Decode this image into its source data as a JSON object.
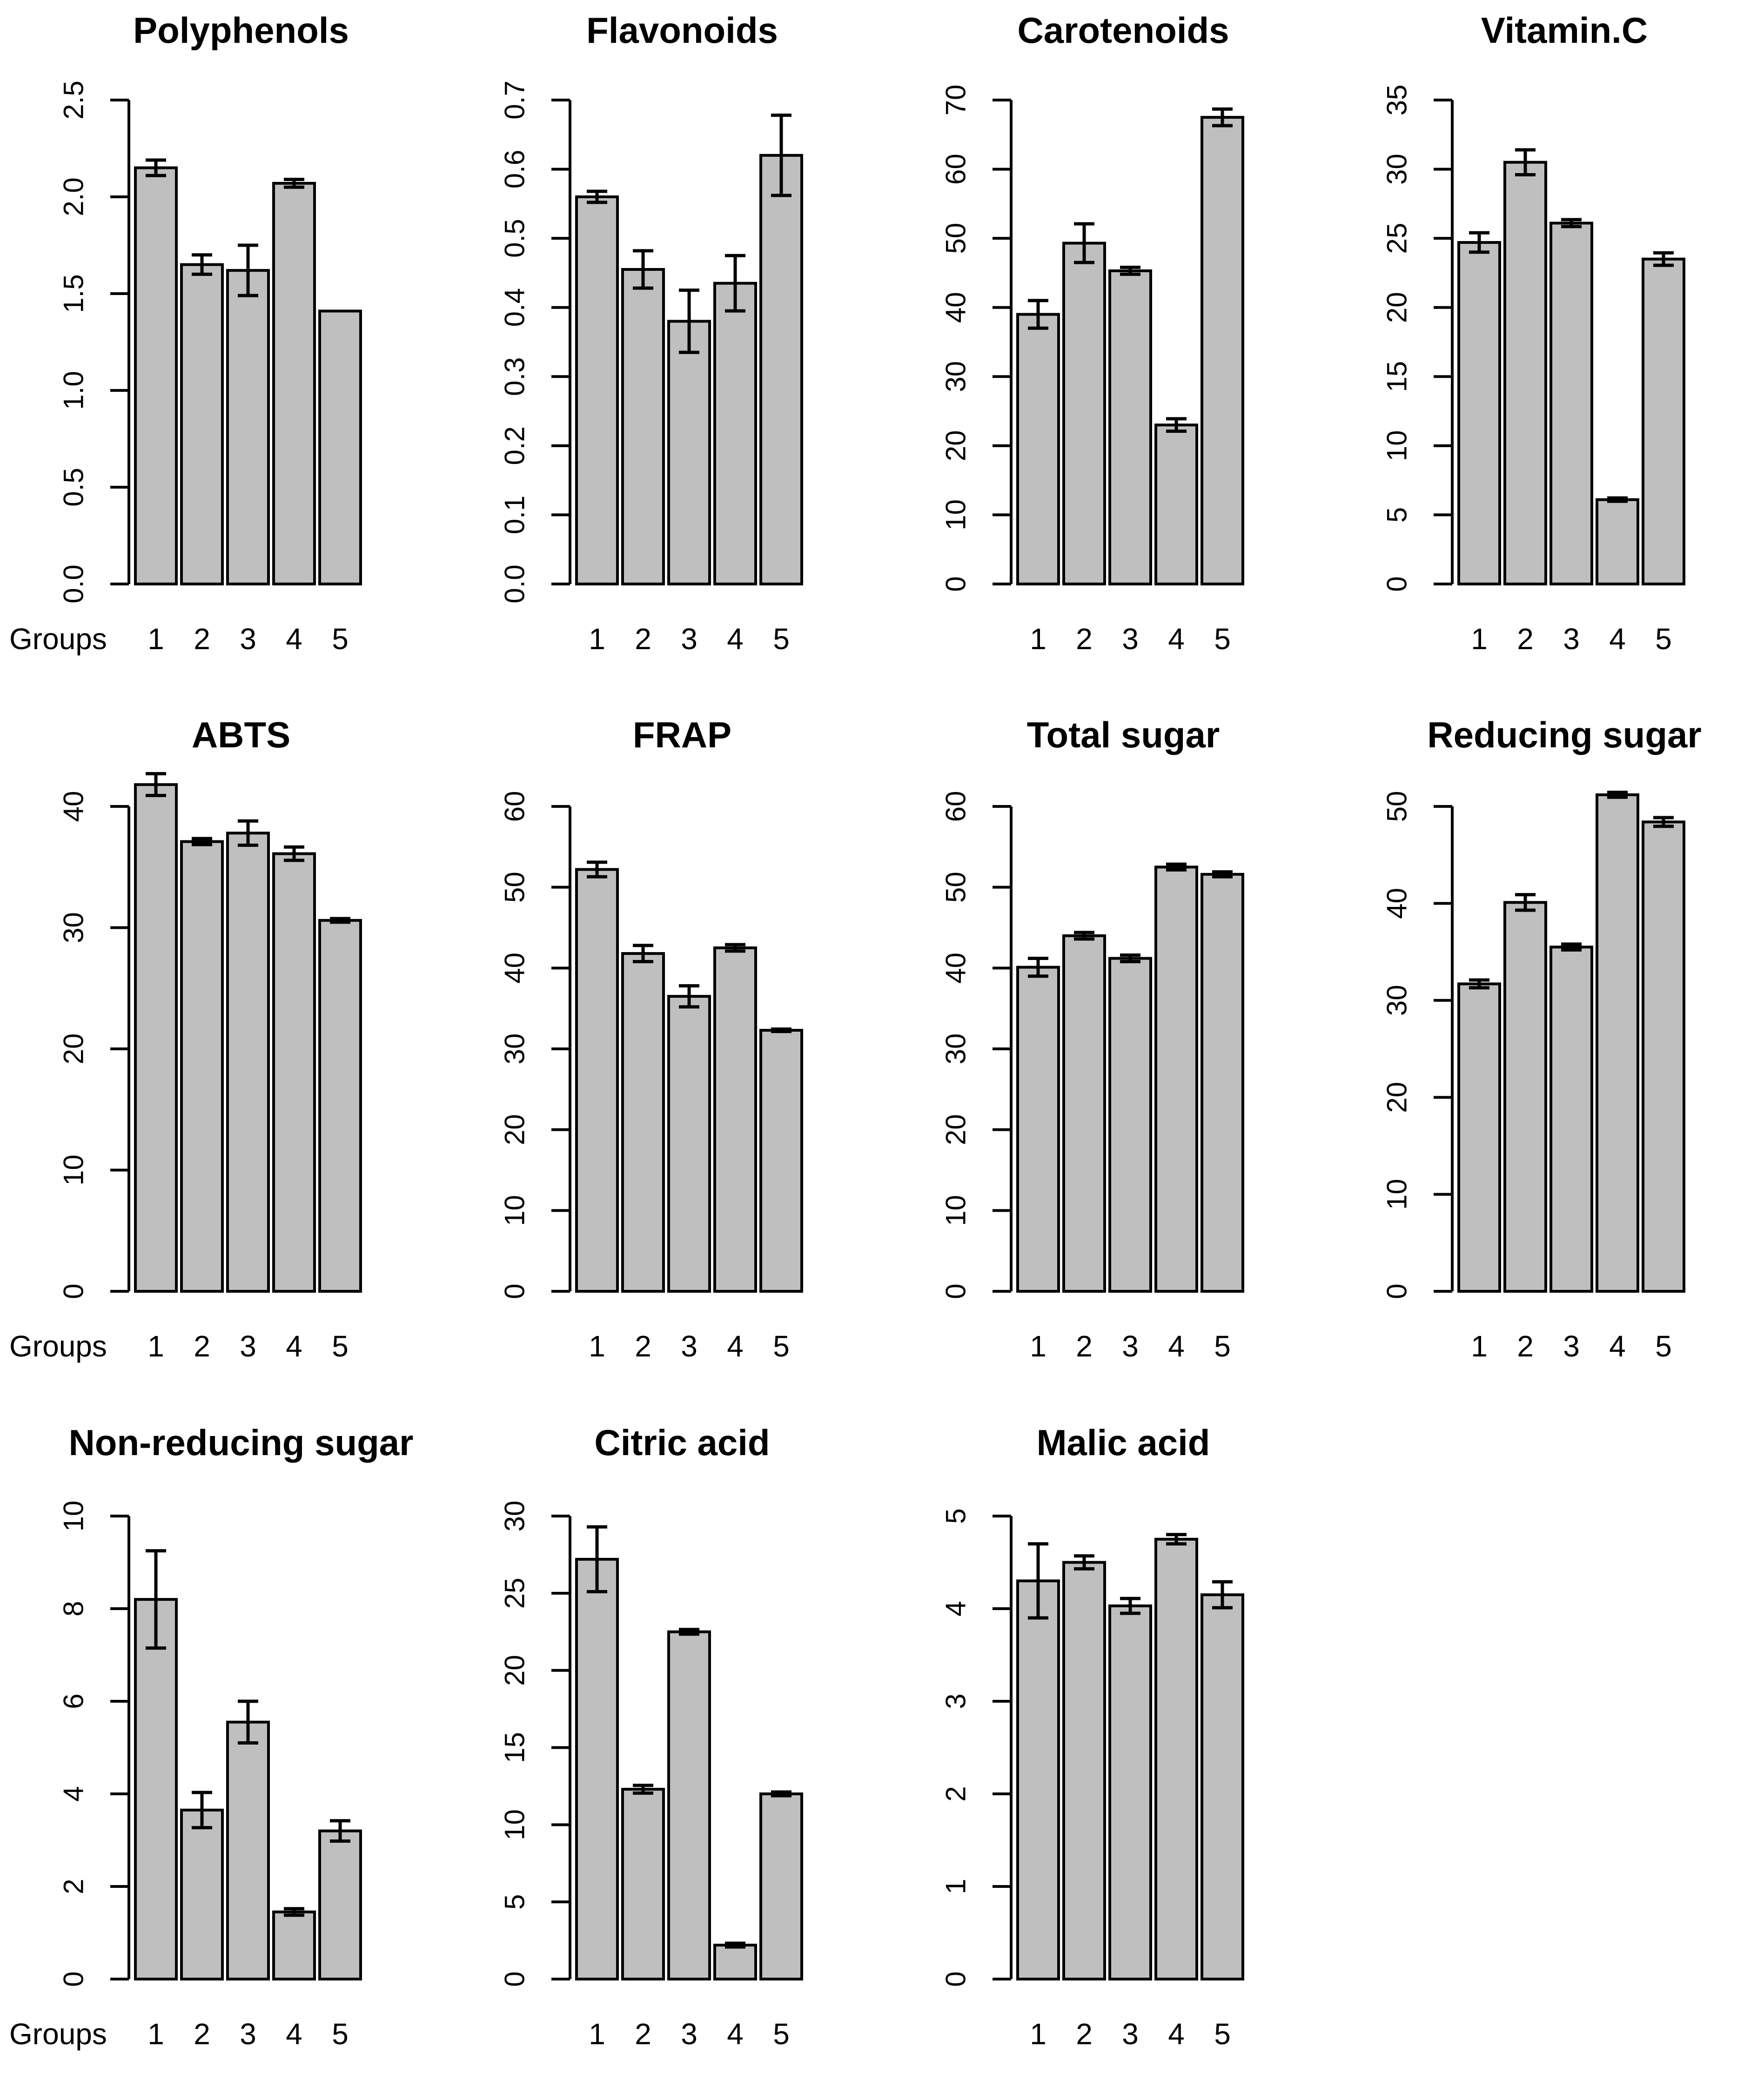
{
  "figure": {
    "background": "#ffffff",
    "bar_fill": "#bfbfbf",
    "bar_stroke": "#000000",
    "axis_color": "#000000",
    "text_color": "#000000"
  },
  "groups_label": "Groups",
  "chart_data": [
    {
      "type": "bar",
      "title": "Polyphenols",
      "row": 0,
      "col": 0,
      "show_groups_label": true,
      "categories": [
        "1",
        "2",
        "3",
        "4",
        "5"
      ],
      "values": [
        2.15,
        1.65,
        1.62,
        2.07,
        1.41
      ],
      "errors": [
        0.04,
        0.05,
        0.13,
        0.02,
        0
      ],
      "ylim": [
        0,
        2.5
      ],
      "yticks": [
        0,
        0.5,
        1,
        1.5,
        2,
        2.5
      ],
      "tick_decimals": 1,
      "xlabel": "",
      "ylabel": "",
      "grid": false,
      "legend": "none"
    },
    {
      "type": "bar",
      "title": "Flavonoids",
      "row": 0,
      "col": 1,
      "show_groups_label": false,
      "categories": [
        "1",
        "2",
        "3",
        "4",
        "5"
      ],
      "values": [
        0.56,
        0.455,
        0.38,
        0.435,
        0.62
      ],
      "errors": [
        0.008,
        0.027,
        0.045,
        0.04,
        0.058
      ],
      "ylim": [
        0,
        0.7
      ],
      "yticks": [
        0,
        0.1,
        0.2,
        0.3,
        0.4,
        0.5,
        0.6,
        0.7
      ],
      "tick_decimals": 1,
      "xlabel": "",
      "ylabel": "",
      "grid": false,
      "legend": "none"
    },
    {
      "type": "bar",
      "title": "Carotenoids",
      "row": 0,
      "col": 2,
      "show_groups_label": false,
      "categories": [
        "1",
        "2",
        "3",
        "4",
        "5"
      ],
      "values": [
        39,
        49.3,
        45.3,
        23,
        67.5
      ],
      "errors": [
        2,
        2.8,
        0.5,
        0.9,
        1.2
      ],
      "ylim": [
        0,
        70
      ],
      "yticks": [
        0,
        10,
        20,
        30,
        40,
        50,
        60,
        70
      ],
      "tick_decimals": 0,
      "xlabel": "",
      "ylabel": "",
      "grid": false,
      "legend": "none"
    },
    {
      "type": "bar",
      "title": "Vitamin.C",
      "row": 0,
      "col": 3,
      "show_groups_label": false,
      "categories": [
        "1",
        "2",
        "3",
        "4",
        "5"
      ],
      "values": [
        24.7,
        30.5,
        26.1,
        6.1,
        23.5
      ],
      "errors": [
        0.7,
        0.9,
        0.25,
        0.12,
        0.45
      ],
      "ylim": [
        0,
        35
      ],
      "yticks": [
        0,
        5,
        10,
        15,
        20,
        25,
        30,
        35
      ],
      "tick_decimals": 0,
      "xlabel": "",
      "ylabel": "",
      "grid": false,
      "legend": "none"
    },
    {
      "type": "bar",
      "title": "ABTS",
      "row": 1,
      "col": 0,
      "show_groups_label": true,
      "categories": [
        "1",
        "2",
        "3",
        "4",
        "5"
      ],
      "values": [
        41.8,
        37.1,
        37.8,
        36.1,
        30.6
      ],
      "errors": [
        0.9,
        0.25,
        1.0,
        0.55,
        0.15
      ],
      "ylim": [
        0,
        42
      ],
      "yticks": [
        0,
        10,
        20,
        30,
        40
      ],
      "tick_decimals": 0,
      "xlabel": "",
      "ylabel": "",
      "grid": false,
      "legend": "none"
    },
    {
      "type": "bar",
      "title": "FRAP",
      "row": 1,
      "col": 1,
      "show_groups_label": false,
      "categories": [
        "1",
        "2",
        "3",
        "4",
        "5"
      ],
      "values": [
        52.2,
        41.8,
        36.5,
        42.5,
        32.3
      ],
      "errors": [
        0.9,
        1.0,
        1.3,
        0.4,
        0.15
      ],
      "ylim": [
        0,
        60
      ],
      "yticks": [
        0,
        10,
        20,
        30,
        40,
        50,
        60
      ],
      "tick_decimals": 0,
      "xlabel": "",
      "ylabel": "",
      "grid": false,
      "legend": "none"
    },
    {
      "type": "bar",
      "title": "Total sugar",
      "row": 1,
      "col": 2,
      "show_groups_label": false,
      "categories": [
        "1",
        "2",
        "3",
        "4",
        "5"
      ],
      "values": [
        40.1,
        44,
        41.2,
        52.5,
        51.6
      ],
      "errors": [
        1.1,
        0.4,
        0.4,
        0.35,
        0.3
      ],
      "ylim": [
        0,
        60
      ],
      "yticks": [
        0,
        10,
        20,
        30,
        40,
        50,
        60
      ],
      "tick_decimals": 0,
      "xlabel": "",
      "ylabel": "",
      "grid": false,
      "legend": "none"
    },
    {
      "type": "bar",
      "title": "Reducing sugar",
      "row": 1,
      "col": 3,
      "show_groups_label": false,
      "categories": [
        "1",
        "2",
        "3",
        "4",
        "5"
      ],
      "values": [
        31.7,
        40.1,
        35.5,
        51.2,
        48.4
      ],
      "errors": [
        0.4,
        0.8,
        0.3,
        0.25,
        0.45
      ],
      "ylim": [
        0,
        51
      ],
      "yticks": [
        0,
        10,
        20,
        30,
        40,
        50
      ],
      "tick_decimals": 0,
      "xlabel": "",
      "ylabel": "",
      "grid": false,
      "legend": "none"
    },
    {
      "type": "bar",
      "title": "Non-reducing sugar",
      "row": 2,
      "col": 0,
      "show_groups_label": true,
      "categories": [
        "1",
        "2",
        "3",
        "4",
        "5"
      ],
      "values": [
        8.2,
        3.65,
        5.55,
        1.45,
        3.2
      ],
      "errors": [
        1.05,
        0.38,
        0.45,
        0.07,
        0.22
      ],
      "ylim": [
        0,
        10
      ],
      "yticks": [
        0,
        2,
        4,
        6,
        8,
        10
      ],
      "tick_decimals": 0,
      "xlabel": "",
      "ylabel": "",
      "grid": false,
      "legend": "none"
    },
    {
      "type": "bar",
      "title": "Citric acid",
      "row": 2,
      "col": 1,
      "show_groups_label": false,
      "categories": [
        "1",
        "2",
        "3",
        "4",
        "5"
      ],
      "values": [
        27.2,
        12.3,
        22.5,
        2.2,
        12.0
      ],
      "errors": [
        2.1,
        0.25,
        0.15,
        0.12,
        0.12
      ],
      "ylim": [
        0,
        30
      ],
      "yticks": [
        0,
        5,
        10,
        15,
        20,
        25,
        30
      ],
      "tick_decimals": 0,
      "xlabel": "",
      "ylabel": "",
      "grid": false,
      "legend": "none"
    },
    {
      "type": "bar",
      "title": "Malic acid",
      "row": 2,
      "col": 2,
      "show_groups_label": false,
      "categories": [
        "1",
        "2",
        "3",
        "4",
        "5"
      ],
      "values": [
        4.3,
        4.5,
        4.03,
        4.75,
        4.15
      ],
      "errors": [
        0.4,
        0.07,
        0.08,
        0.05,
        0.14
      ],
      "ylim": [
        0,
        5
      ],
      "yticks": [
        0,
        1,
        2,
        3,
        4,
        5
      ],
      "tick_decimals": 0,
      "xlabel": "",
      "ylabel": "",
      "grid": false,
      "legend": "none"
    }
  ]
}
